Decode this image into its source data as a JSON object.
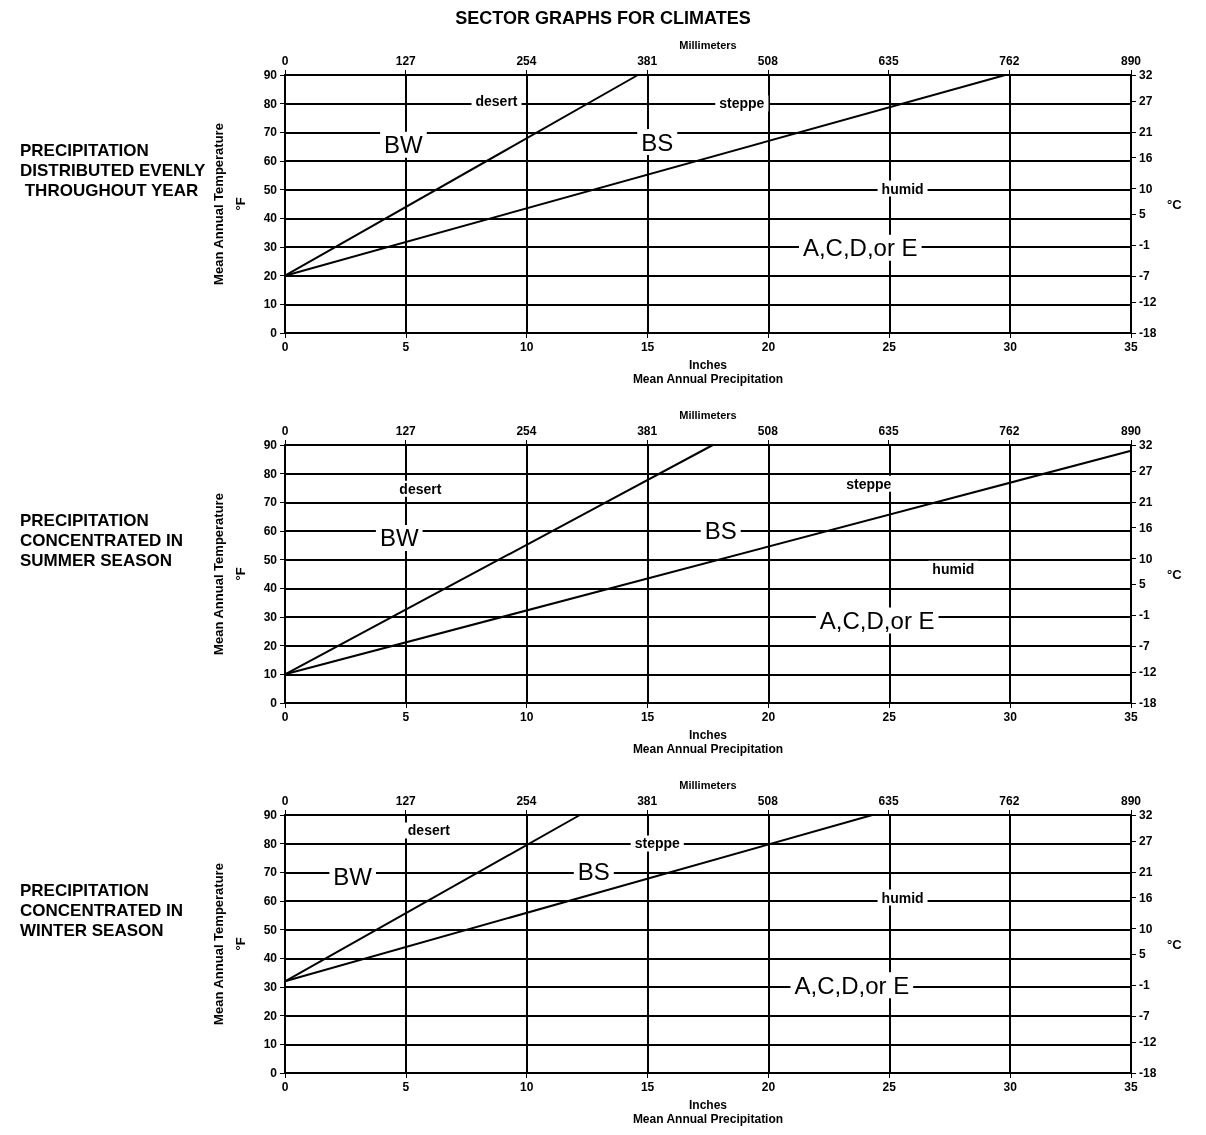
{
  "chart_data": [
    {
      "type": "line",
      "title": "SECTOR GRAPHS FOR CLIMATES",
      "subtitle": "PRECIPITATION DISTRIBUTED EVENLY THROUGHOUT YEAR",
      "xlabel": "Inches\nMean Annual Precipitation",
      "x2label": "Millimeters",
      "ylabel": "Mean Annual Temperature\n°F",
      "y2label": "°C",
      "series": [
        {
          "color": "#000000",
          "x": [
            0,
            14.6
          ],
          "values": [
            20,
            90
          ]
        },
        {
          "color": "#000000",
          "x": [
            0,
            29.8
          ],
          "values": [
            20,
            90
          ]
        }
      ],
      "xlim": [
        0,
        35
      ],
      "xticks": [
        0,
        5,
        10,
        15,
        20,
        25,
        30,
        35
      ],
      "x2lim": [
        0,
        890
      ],
      "x2ticks": [
        0,
        127,
        254,
        381,
        508,
        635,
        762,
        890
      ],
      "ylim": [
        0,
        90
      ],
      "yticks": [
        0,
        10,
        20,
        30,
        40,
        50,
        60,
        70,
        80,
        90
      ],
      "y2lim": [
        -18,
        32
      ],
      "y2ticks": [
        -18,
        -12,
        -7,
        -1,
        5,
        10,
        16,
        21,
        27,
        32
      ],
      "annotations": [
        "BW",
        "desert",
        "BS",
        "steppe",
        "humid",
        "A,C,D,or E"
      ],
      "grid": true,
      "marker": "none",
      "line_style": "solid"
    },
    {
      "type": "line",
      "title": "PRECIPITATION CONCENTRATED IN SUMMER SEASON",
      "xlabel": "Inches\nMean Annual Precipitation",
      "x2label": "Millimeters",
      "ylabel": "Mean Annual Temperature\n°F",
      "y2label": "°C",
      "series": [
        {
          "color": "#000000",
          "x": [
            0,
            17.7
          ],
          "values": [
            10,
            90
          ]
        },
        {
          "color": "#000000",
          "x": [
            0,
            35
          ],
          "values": [
            10,
            88
          ]
        }
      ],
      "xlim": [
        0,
        35
      ],
      "xticks": [
        0,
        5,
        10,
        15,
        20,
        25,
        30,
        35
      ],
      "x2lim": [
        0,
        890
      ],
      "x2ticks": [
        0,
        127,
        254,
        381,
        508,
        635,
        762,
        890
      ],
      "ylim": [
        0,
        90
      ],
      "yticks": [
        0,
        10,
        20,
        30,
        40,
        50,
        60,
        70,
        80,
        90
      ],
      "y2lim": [
        -18,
        32
      ],
      "y2ticks": [
        -18,
        -12,
        -7,
        -1,
        5,
        10,
        16,
        21,
        27,
        32
      ],
      "annotations": [
        "BW",
        "desert",
        "BS",
        "steppe",
        "humid",
        "A,C,D,or E"
      ],
      "grid": true,
      "marker": "none",
      "line_style": "solid"
    },
    {
      "type": "line",
      "title": "PRECIPITATION CONCENTRATED IN WINTER SEASON",
      "xlabel": "Inches\nMean Annual Precipitation",
      "x2label": "Millimeters",
      "ylabel": "Mean Annual Temperature\n°F",
      "y2label": "°C",
      "series": [
        {
          "color": "#000000",
          "x": [
            0,
            12.2
          ],
          "values": [
            32,
            90
          ]
        },
        {
          "color": "#000000",
          "x": [
            0,
            24.3
          ],
          "values": [
            32,
            90
          ]
        }
      ],
      "xlim": [
        0,
        35
      ],
      "xticks": [
        0,
        5,
        10,
        15,
        20,
        25,
        30,
        35
      ],
      "x2lim": [
        0,
        890
      ],
      "x2ticks": [
        0,
        127,
        254,
        381,
        508,
        635,
        762,
        890
      ],
      "ylim": [
        0,
        90
      ],
      "yticks": [
        0,
        10,
        20,
        30,
        40,
        50,
        60,
        70,
        80,
        90
      ],
      "y2lim": [
        -18,
        32
      ],
      "y2ticks": [
        -18,
        -12,
        -7,
        -1,
        5,
        10,
        16,
        21,
        27,
        32
      ],
      "annotations": [
        "BW",
        "desert",
        "BS",
        "steppe",
        "humid",
        "A,C,D,or E"
      ],
      "grid": true,
      "marker": "none",
      "line_style": "solid"
    }
  ]
}
